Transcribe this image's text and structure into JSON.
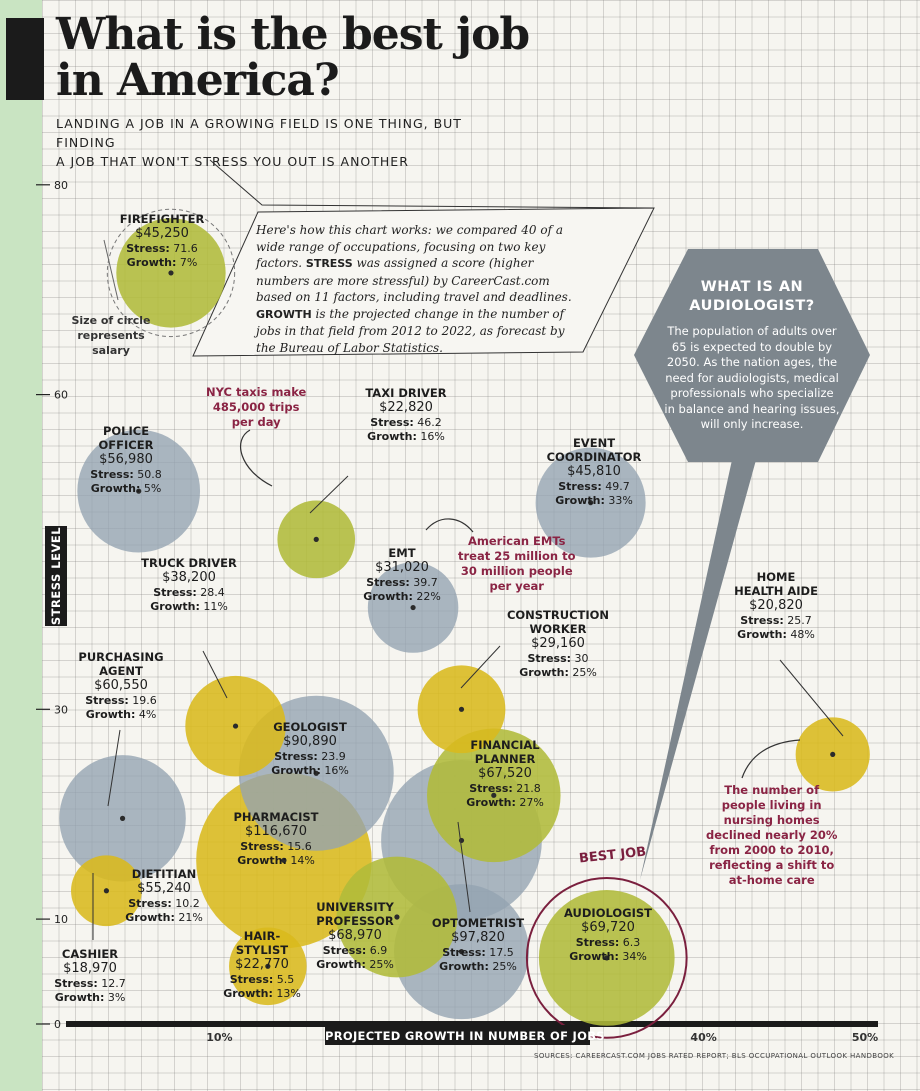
{
  "title_line1": "What is the best job",
  "title_line2": "in America?",
  "subtitle_line1": "LANDING A JOB IN A GROWING FIELD IS ONE THING, BUT FINDING",
  "subtitle_line2": "A JOB THAT WON'T STRESS YOU OUT IS ANOTHER",
  "how_it_works": {
    "part1": "Here's how this chart works: we compared 40 of a wide range of occupations, focusing on two key factors. ",
    "stress_word": "STRESS",
    "part2": " was assigned a score (higher numbers are more stressful) by CareerCast.com based on 11 factors, including travel and deadlines. ",
    "growth_word": "GROWTH",
    "part3": " is the projected change in the number of jobs in that field from 2012 to 2022, as forecast by the Bureau of Labor Statistics."
  },
  "legend": {
    "line1": "Size of circle",
    "line2": "represents",
    "line3": "salary"
  },
  "audiologist_box": {
    "title_line1": "WHAT IS AN",
    "title_line2": "AUDIOLOGIST?",
    "body": "The population of adults over 65 is expected to double by 2050. As the nation ages, the need for audiologists, medical professionals who specialize in balance and hearing issues, will only increase."
  },
  "annotations": {
    "taxi": [
      "NYC taxis make",
      "485,000 trips",
      "per day"
    ],
    "emt": [
      "American EMTs",
      "treat 25 million to",
      "30 million people",
      "per year"
    ],
    "home": [
      "The number of",
      "people living in",
      "nursing homes",
      "declined nearly 20%",
      "from 2000 to 2010,",
      "reflecting a shift to",
      "at-home care"
    ],
    "best_job": "BEST JOB"
  },
  "y_axis_label": "STRESS LEVEL",
  "x_axis_label": "PROJECTED GROWTH IN NUMBER OF JOBS",
  "source": "SOURCES: CAREERCAST.COM JOBS RATED REPORT; BLS OCCUPATIONAL OUTLOOK HANDBOOK",
  "colors": {
    "gray": "#93a3b1",
    "green": "#b0bb3a",
    "yellow": "#d9ba1c",
    "best": "#7a1f3e"
  },
  "chart_data": {
    "type": "scatter",
    "title": "What is the best job in America?",
    "xlabel": "PROJECTED GROWTH IN NUMBER OF JOBS",
    "ylabel": "STRESS LEVEL",
    "xlim": [
      0,
      50
    ],
    "ylim": [
      0,
      82
    ],
    "x_ticks": [
      "10%",
      "40%",
      "50%"
    ],
    "y_ticks": [
      "0",
      "10",
      "30",
      "60",
      "80"
    ],
    "size_encoding": "salary",
    "points": [
      {
        "name": "FIREFIGHTER",
        "salary": "$45,250",
        "stress": 71.6,
        "growth": 7,
        "stress_label": "71.6",
        "growth_label": "7%",
        "color": "green"
      },
      {
        "name": "POLICE OFFICER",
        "salary": "$56,980",
        "stress": 50.8,
        "growth": 5,
        "stress_label": "50.8",
        "growth_label": "5%",
        "color": "gray"
      },
      {
        "name": "TAXI DRIVER",
        "salary": "$22,820",
        "stress": 46.2,
        "growth": 16,
        "stress_label": "46.2",
        "growth_label": "16%",
        "color": "green"
      },
      {
        "name": "EVENT COORDINATOR",
        "salary": "$45,810",
        "stress": 49.7,
        "growth": 33,
        "stress_label": "49.7",
        "growth_label": "33%",
        "color": "gray"
      },
      {
        "name": "EMT",
        "salary": "$31,020",
        "stress": 39.7,
        "growth": 22,
        "stress_label": "39.7",
        "growth_label": "22%",
        "color": "gray"
      },
      {
        "name": "TRUCK DRIVER",
        "salary": "$38,200",
        "stress": 28.4,
        "growth": 11,
        "stress_label": "28.4",
        "growth_label": "11%",
        "color": "yellow"
      },
      {
        "name": "HOME HEALTH AIDE",
        "salary": "$20,820",
        "stress": 25.7,
        "growth": 48,
        "stress_label": "25.7",
        "growth_label": "48%",
        "color": "yellow"
      },
      {
        "name": "CONSTRUCTION WORKER",
        "salary": "$29,160",
        "stress": 30,
        "growth": 25,
        "stress_label": "30",
        "growth_label": "25%",
        "color": "yellow"
      },
      {
        "name": "PURCHASING AGENT",
        "salary": "$60,550",
        "stress": 19.6,
        "growth": 4,
        "stress_label": "19.6",
        "growth_label": "4%",
        "color": "gray"
      },
      {
        "name": "GEOLOGIST",
        "salary": "$90,890",
        "stress": 23.9,
        "growth": 16,
        "stress_label": "23.9",
        "growth_label": "16%",
        "color": "gray"
      },
      {
        "name": "FINANCIAL PLANNER",
        "salary": "$67,520",
        "stress": 21.8,
        "growth": 27,
        "stress_label": "21.8",
        "growth_label": "27%",
        "color": "green"
      },
      {
        "name": "PHARMACIST",
        "salary": "$116,670",
        "stress": 15.6,
        "growth": 14,
        "stress_label": "15.6",
        "growth_label": "14%",
        "color": "yellow"
      },
      {
        "name": "OPTOMETRIST",
        "salary": "$97,820",
        "stress": 17.5,
        "growth": 25,
        "stress_label": "17.5",
        "growth_label": "25%",
        "color": "gray"
      },
      {
        "name": "DIETITIAN",
        "salary": "$55,240",
        "stress": 10.2,
        "growth": 21,
        "stress_label": "10.2",
        "growth_label": "21%",
        "color": "green"
      },
      {
        "name": "CASHIER",
        "salary": "$18,970",
        "stress": 12.7,
        "growth": 3,
        "stress_label": "12.7",
        "growth_label": "3%",
        "color": "yellow"
      },
      {
        "name": "UNIVERSITY PROFESSOR",
        "salary": "$68,970",
        "stress": 6.9,
        "growth": 25,
        "stress_label": "6.9",
        "growth_label": "25%",
        "color": "gray"
      },
      {
        "name": "HAIR-STYLIST",
        "salary": "$22,770",
        "stress": 5.5,
        "growth": 13,
        "stress_label": "5.5",
        "growth_label": "13%",
        "color": "yellow"
      },
      {
        "name": "AUDIOLOGIST",
        "salary": "$69,720",
        "stress": 6.3,
        "growth": 34,
        "stress_label": "6.3",
        "growth_label": "34%",
        "color": "green",
        "best_job": true
      }
    ]
  }
}
